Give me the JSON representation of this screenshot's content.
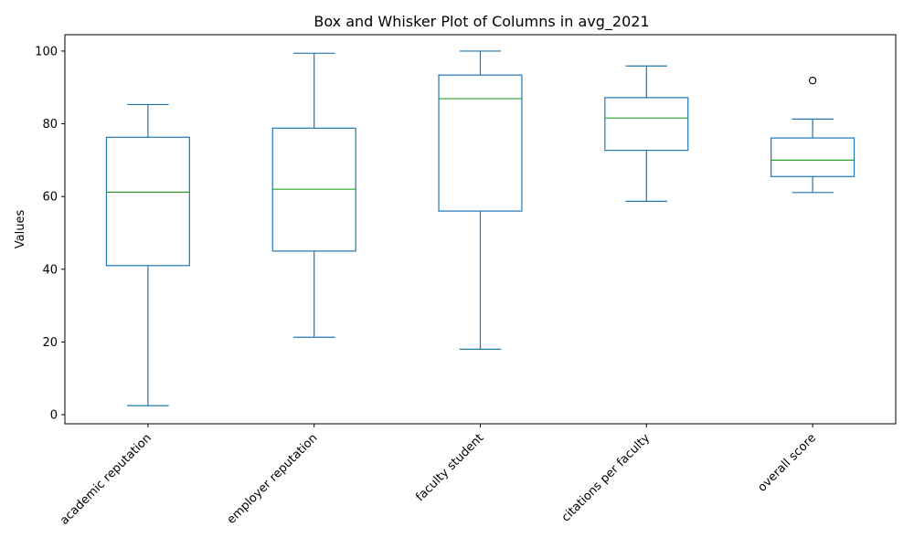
{
  "chart_data": {
    "type": "box",
    "title": "Box and Whisker Plot of Columns in avg_2021",
    "xlabel": "",
    "ylabel": "Values",
    "ylim": [
      -2.5,
      104.5
    ],
    "yticks": [
      0,
      20,
      40,
      60,
      80,
      100
    ],
    "categories": [
      "academic reputation",
      "employer reputation",
      "faculty student",
      "citations per faculty",
      "overall score"
    ],
    "boxes": [
      {
        "whisker_low": 2.5,
        "q1": 41.0,
        "median": 61.2,
        "q3": 76.3,
        "whisker_high": 85.3,
        "outliers": []
      },
      {
        "whisker_low": 21.3,
        "q1": 45.0,
        "median": 62.0,
        "q3": 78.8,
        "whisker_high": 99.4,
        "outliers": []
      },
      {
        "whisker_low": 18.0,
        "q1": 56.0,
        "median": 86.9,
        "q3": 93.4,
        "whisker_high": 100.0,
        "outliers": []
      },
      {
        "whisker_low": 58.7,
        "q1": 72.7,
        "median": 81.6,
        "q3": 87.2,
        "whisker_high": 95.9,
        "outliers": []
      },
      {
        "whisker_low": 61.1,
        "q1": 65.5,
        "median": 70.0,
        "q3": 76.1,
        "whisker_high": 81.3,
        "outliers": [
          91.9
        ]
      }
    ],
    "colors": {
      "box": "#1f77b4",
      "median": "#2ca02c",
      "outlier": "#000000",
      "axes": "#000000"
    },
    "grid": false
  }
}
